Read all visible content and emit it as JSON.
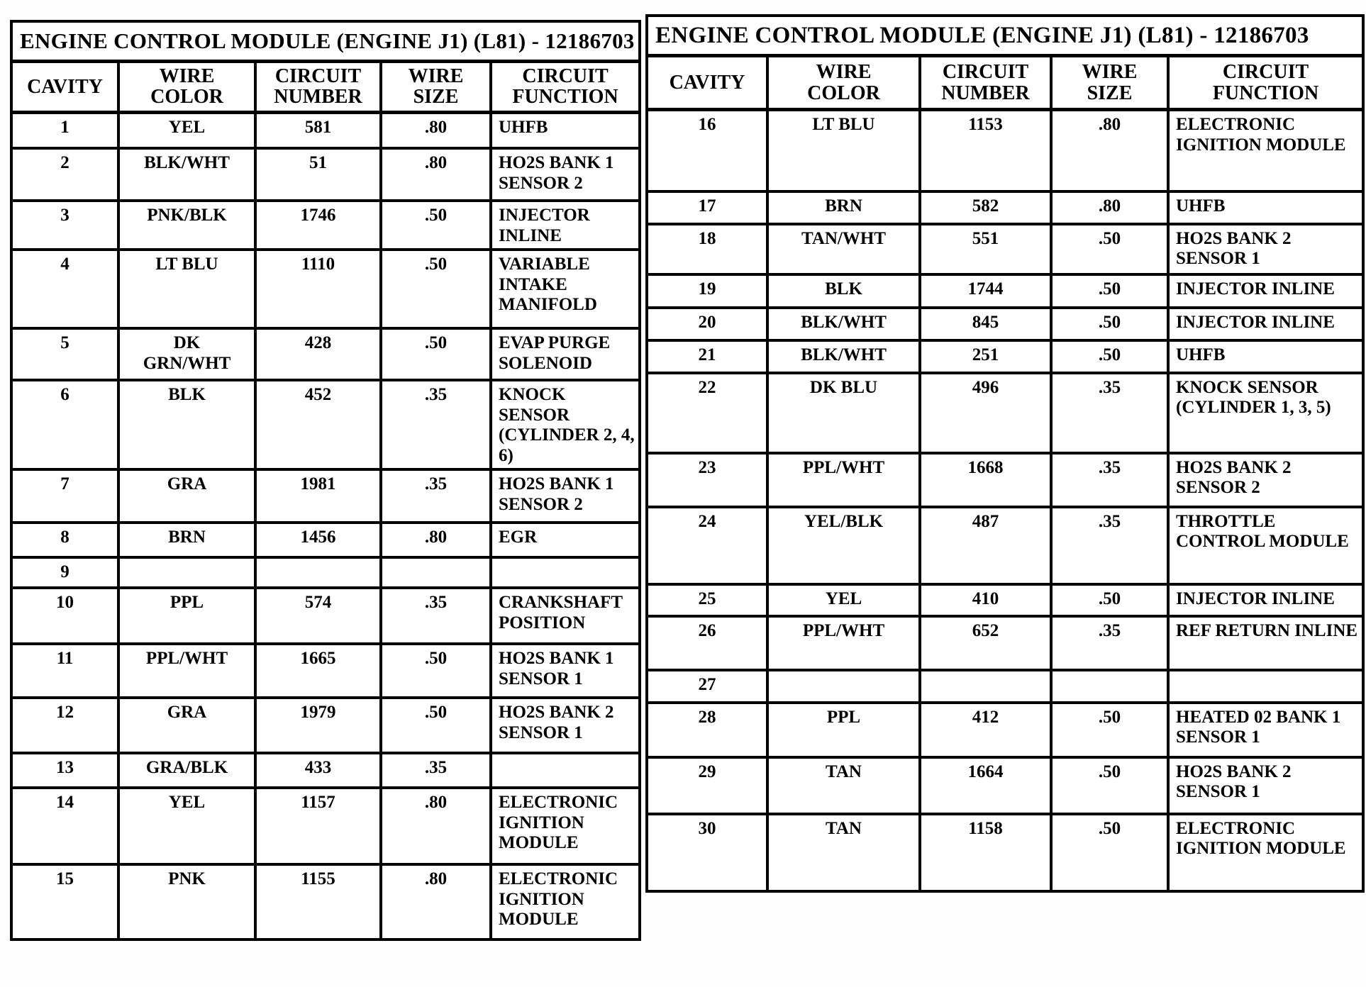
{
  "tables": [
    {
      "title": "ENGINE CONTROL MODULE (ENGINE J1) (L81) - 12186703",
      "columns": [
        "CAVITY",
        "WIRE\nCOLOR",
        "CIRCUIT\nNUMBER",
        "WIRE\nSIZE",
        "CIRCUIT\nFUNCTION"
      ],
      "rows": [
        {
          "cavity": "1",
          "wire_color": "YEL",
          "circuit_number": "581",
          "wire_size": ".80",
          "circuit_function": "UHFB"
        },
        {
          "cavity": "2",
          "wire_color": "BLK/WHT",
          "circuit_number": "51",
          "wire_size": ".80",
          "circuit_function": "HO2S BANK 1 SENSOR 2"
        },
        {
          "cavity": "3",
          "wire_color": "PNK/BLK",
          "circuit_number": "1746",
          "wire_size": ".50",
          "circuit_function": "INJECTOR INLINE"
        },
        {
          "cavity": "4",
          "wire_color": "LT BLU",
          "circuit_number": "1110",
          "wire_size": ".50",
          "circuit_function": "VARIABLE INTAKE MANIFOLD"
        },
        {
          "cavity": "5",
          "wire_color": "DK\nGRN/WHT",
          "circuit_number": "428",
          "wire_size": ".50",
          "circuit_function": "EVAP PURGE SOLENOID"
        },
        {
          "cavity": "6",
          "wire_color": "BLK",
          "circuit_number": "452",
          "wire_size": ".35",
          "circuit_function": "KNOCK SENSOR (CYLINDER 2, 4, 6)"
        },
        {
          "cavity": "7",
          "wire_color": "GRA",
          "circuit_number": "1981",
          "wire_size": ".35",
          "circuit_function": "HO2S BANK 1 SENSOR 2"
        },
        {
          "cavity": "8",
          "wire_color": "BRN",
          "circuit_number": "1456",
          "wire_size": ".80",
          "circuit_function": "EGR"
        },
        {
          "cavity": "9",
          "wire_color": "",
          "circuit_number": "",
          "wire_size": "",
          "circuit_function": ""
        },
        {
          "cavity": "10",
          "wire_color": "PPL",
          "circuit_number": "574",
          "wire_size": ".35",
          "circuit_function": "CRANKSHAFT POSITION"
        },
        {
          "cavity": "11",
          "wire_color": "PPL/WHT",
          "circuit_number": "1665",
          "wire_size": ".50",
          "circuit_function": "HO2S BANK 1 SENSOR 1"
        },
        {
          "cavity": "12",
          "wire_color": "GRA",
          "circuit_number": "1979",
          "wire_size": ".50",
          "circuit_function": "HO2S BANK 2 SENSOR 1"
        },
        {
          "cavity": "13",
          "wire_color": "GRA/BLK",
          "circuit_number": "433",
          "wire_size": ".35",
          "circuit_function": ""
        },
        {
          "cavity": "14",
          "wire_color": "YEL",
          "circuit_number": "1157",
          "wire_size": ".80",
          "circuit_function": "ELECTRONIC IGNITION MODULE"
        },
        {
          "cavity": "15",
          "wire_color": "PNK",
          "circuit_number": "1155",
          "wire_size": ".80",
          "circuit_function": "ELECTRONIC IGNITION MODULE"
        }
      ]
    },
    {
      "title": "ENGINE CONTROL MODULE (ENGINE J1) (L81) - 12186703",
      "columns": [
        "CAVITY",
        "WIRE\nCOLOR",
        "CIRCUIT\nNUMBER",
        "WIRE\nSIZE",
        "CIRCUIT\nFUNCTION"
      ],
      "rows": [
        {
          "cavity": "16",
          "wire_color": "LT BLU",
          "circuit_number": "1153",
          "wire_size": ".80",
          "circuit_function": "ELECTRONIC IGNITION MODULE"
        },
        {
          "cavity": "17",
          "wire_color": "BRN",
          "circuit_number": "582",
          "wire_size": ".80",
          "circuit_function": "UHFB"
        },
        {
          "cavity": "18",
          "wire_color": "TAN/WHT",
          "circuit_number": "551",
          "wire_size": ".50",
          "circuit_function": "HO2S BANK 2 SENSOR 1"
        },
        {
          "cavity": "19",
          "wire_color": "BLK",
          "circuit_number": "1744",
          "wire_size": ".50",
          "circuit_function": "INJECTOR INLINE"
        },
        {
          "cavity": "20",
          "wire_color": "BLK/WHT",
          "circuit_number": "845",
          "wire_size": ".50",
          "circuit_function": "INJECTOR INLINE"
        },
        {
          "cavity": "21",
          "wire_color": "BLK/WHT",
          "circuit_number": "251",
          "wire_size": ".50",
          "circuit_function": "UHFB"
        },
        {
          "cavity": "22",
          "wire_color": "DK BLU",
          "circuit_number": "496",
          "wire_size": ".35",
          "circuit_function": "KNOCK SENSOR (CYLINDER 1, 3, 5)"
        },
        {
          "cavity": "23",
          "wire_color": "PPL/WHT",
          "circuit_number": "1668",
          "wire_size": ".35",
          "circuit_function": "HO2S BANK 2 SENSOR 2"
        },
        {
          "cavity": "24",
          "wire_color": "YEL/BLK",
          "circuit_number": "487",
          "wire_size": ".35",
          "circuit_function": "THROTTLE CONTROL MODULE"
        },
        {
          "cavity": "25",
          "wire_color": "YEL",
          "circuit_number": "410",
          "wire_size": ".50",
          "circuit_function": "INJECTOR INLINE"
        },
        {
          "cavity": "26",
          "wire_color": "PPL/WHT",
          "circuit_number": "652",
          "wire_size": ".35",
          "circuit_function": "REF RETURN INLINE"
        },
        {
          "cavity": "27",
          "wire_color": "",
          "circuit_number": "",
          "wire_size": "",
          "circuit_function": ""
        },
        {
          "cavity": "28",
          "wire_color": "PPL",
          "circuit_number": "412",
          "wire_size": ".50",
          "circuit_function": "HEATED 02 BANK 1 SENSOR 1"
        },
        {
          "cavity": "29",
          "wire_color": "TAN",
          "circuit_number": "1664",
          "wire_size": ".50",
          "circuit_function": "HO2S BANK 2 SENSOR 1"
        },
        {
          "cavity": "30",
          "wire_color": "TAN",
          "circuit_number": "1158",
          "wire_size": ".50",
          "circuit_function": "ELECTRONIC IGNITION MODULE"
        }
      ]
    }
  ]
}
